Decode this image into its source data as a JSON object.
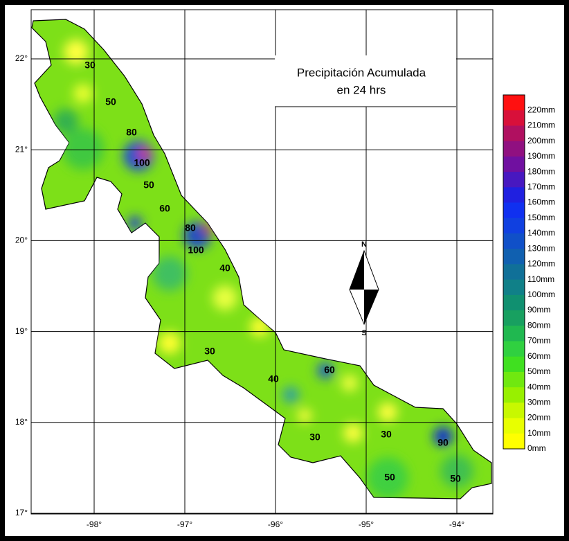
{
  "title": {
    "line1": "Precipitación Acumulada",
    "line2": "en 24 hrs"
  },
  "longitudes": [
    "-98°",
    "-97°",
    "-96°",
    "-95°",
    "-94°"
  ],
  "latitudes": [
    "22°",
    "21°",
    "20°",
    "19°",
    "18°",
    "17°"
  ],
  "compass": {
    "north": "N",
    "south": "S"
  },
  "contours": [
    "30",
    "50",
    "80",
    "100",
    "50",
    "60",
    "80",
    "100",
    "40",
    "30",
    "40",
    "60",
    "30",
    "30",
    "90",
    "50",
    "50"
  ],
  "legend": [
    {
      "label": "220mm",
      "color": "#ff1010"
    },
    {
      "label": "210mm",
      "color": "#d8103a"
    },
    {
      "label": "200mm",
      "color": "#b01060"
    },
    {
      "label": "190mm",
      "color": "#901080"
    },
    {
      "label": "180mm",
      "color": "#7010a0"
    },
    {
      "label": "170mm",
      "color": "#4818c0"
    },
    {
      "label": "160mm",
      "color": "#2020e0"
    },
    {
      "label": "150mm",
      "color": "#1030f0"
    },
    {
      "label": "140mm",
      "color": "#1040e0"
    },
    {
      "label": "130mm",
      "color": "#1050c8"
    },
    {
      "label": "120mm",
      "color": "#1060b0"
    },
    {
      "label": "110mm",
      "color": "#107098"
    },
    {
      "label": "100mm",
      "color": "#108088"
    },
    {
      "label": "90mm",
      "color": "#109070"
    },
    {
      "label": "80mm",
      "color": "#18a060"
    },
    {
      "label": "70mm",
      "color": "#20b850"
    },
    {
      "label": "60mm",
      "color": "#30d040"
    },
    {
      "label": "50mm",
      "color": "#40e020"
    },
    {
      "label": "40mm",
      "color": "#70e810"
    },
    {
      "label": "30mm",
      "color": "#98f000"
    },
    {
      "label": "20mm",
      "color": "#c8f800"
    },
    {
      "label": "10mm",
      "color": "#e8ff00"
    },
    {
      "label": "0mm",
      "color": "#ffff00"
    }
  ]
}
